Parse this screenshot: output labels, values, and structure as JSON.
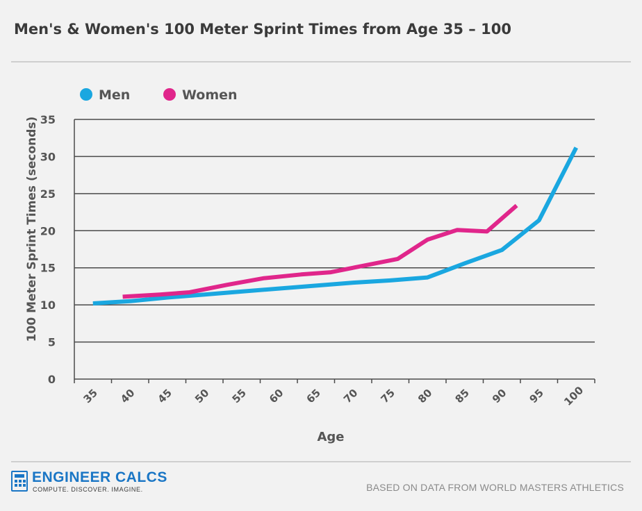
{
  "page": {
    "title": "Men's & Women's 100 Meter Sprint Times from Age 35 – 100",
    "source_note": "BASED ON DATA FROM WORLD MASTERS ATHLETICS"
  },
  "logo": {
    "name": "ENGINEER CALCS",
    "tagline": "COMPUTE. DISCOVER. IMAGINE.",
    "icon": "calculator-icon",
    "color": "#1a76c5"
  },
  "chart_data": {
    "type": "line",
    "title": "Men's & Women's 100 Meter Sprint Times from Age 35 – 100",
    "xlabel": "Age",
    "ylabel": "100 Meter Sprint Times (seconds)",
    "x_ticks": [
      35,
      40,
      45,
      50,
      55,
      60,
      65,
      70,
      75,
      80,
      85,
      90,
      95,
      100
    ],
    "y_ticks": [
      0,
      5,
      10,
      15,
      20,
      25,
      30,
      35
    ],
    "xlim": [
      32.5,
      102.5
    ],
    "ylim": [
      0,
      35
    ],
    "grid": "horizontal",
    "legend_position": "top-left",
    "series": [
      {
        "name": "Men",
        "color": "#1aa7e0",
        "points": [
          [
            35,
            10.2
          ],
          [
            40,
            10.5
          ],
          [
            45,
            11.0
          ],
          [
            50,
            11.4
          ],
          [
            55,
            11.8
          ],
          [
            60,
            12.2
          ],
          [
            65,
            12.6
          ],
          [
            70,
            13.0
          ],
          [
            75,
            13.3
          ],
          [
            80,
            13.7
          ],
          [
            85,
            15.6
          ],
          [
            90,
            17.4
          ],
          [
            95,
            21.4
          ],
          [
            100,
            31.2
          ]
        ]
      },
      {
        "name": "Women",
        "color": "#e0268b",
        "points": [
          [
            39,
            11.1
          ],
          [
            44,
            11.4
          ],
          [
            48,
            11.7
          ],
          [
            53,
            12.7
          ],
          [
            58,
            13.6
          ],
          [
            63,
            14.1
          ],
          [
            67,
            14.4
          ],
          [
            72,
            15.4
          ],
          [
            76,
            16.2
          ],
          [
            80,
            18.8
          ],
          [
            84,
            20.1
          ],
          [
            88,
            19.9
          ],
          [
            92,
            23.4
          ]
        ]
      }
    ]
  }
}
